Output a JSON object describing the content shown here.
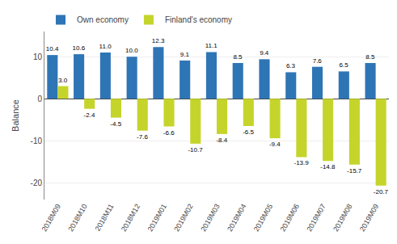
{
  "chart_data": {
    "type": "bar",
    "categories": [
      "2018M09",
      "2018M10",
      "2018M11",
      "2018M12",
      "2019M01",
      "2019M02",
      "2019M03",
      "2019M04",
      "2019M05",
      "2019M06",
      "2019M07",
      "2019M08",
      "2019M09"
    ],
    "series": [
      {
        "name": "Own economy",
        "color": "#2e75b6",
        "values": [
          10.4,
          10.6,
          11.0,
          10.0,
          12.3,
          9.1,
          11.1,
          8.5,
          9.4,
          6.3,
          7.6,
          6.5,
          8.5
        ],
        "value_labels": [
          "10.4",
          "10.6",
          "11.0",
          "10.0",
          "12.3",
          "9.1",
          "11.1",
          "8.5",
          "9.4",
          "6.3",
          "7.6",
          "6.5",
          "8.5"
        ]
      },
      {
        "name": "Finland's economy",
        "color": "#c5d42b",
        "values": [
          3.0,
          -2.4,
          -4.5,
          -7.6,
          -6.6,
          -10.7,
          -8.4,
          -6.5,
          -9.4,
          -13.9,
          -14.8,
          -15.7,
          -20.7
        ],
        "value_labels": [
          "3.0",
          "-2.4",
          "-4.5",
          "-7.6",
          "-6.6",
          "-10.7",
          "-8.4",
          "-6.5",
          "-9.4",
          "-13.9",
          "-14.8",
          "-15.7",
          "-20.7"
        ]
      }
    ],
    "ylabel": "Balance",
    "ylim": [
      -24,
      16
    ],
    "yticks": [
      -20,
      -10,
      0,
      10
    ],
    "grid": true,
    "legend": "upper left",
    "data_labels": true
  }
}
